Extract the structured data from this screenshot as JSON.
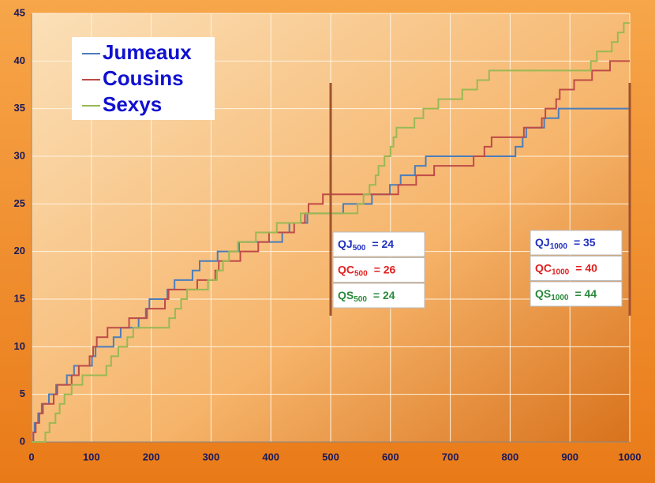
{
  "chart_data": {
    "type": "step-line",
    "xlim": [
      0,
      1000
    ],
    "xticks": [
      0,
      100,
      200,
      300,
      400,
      500,
      600,
      700,
      800,
      900,
      1000
    ],
    "ylim": [
      0,
      45
    ],
    "yticks": [
      0,
      5,
      10,
      15,
      20,
      25,
      30,
      35,
      40,
      45
    ],
    "grid": true,
    "legend": "top-left",
    "series": [
      {
        "name": "Jumeaux",
        "color": "#4a7ebb",
        "x": [
          0,
          3,
          5,
          11,
          17,
          29,
          41,
          59,
          71,
          101,
          107,
          137,
          149,
          179,
          191,
          197,
          227,
          239,
          269,
          281,
          311,
          347,
          419,
          431,
          461,
          521,
          569,
          599,
          617,
          641,
          659,
          809,
          821,
          827,
          857,
          881,
          1000
        ],
        "values": [
          0,
          1,
          2,
          3,
          4,
          5,
          6,
          7,
          8,
          9,
          10,
          11,
          12,
          13,
          14,
          15,
          16,
          17,
          18,
          19,
          20,
          21,
          22,
          23,
          24,
          25,
          26,
          27,
          28,
          29,
          30,
          31,
          32,
          33,
          34,
          35,
          35
        ]
      },
      {
        "name": "Cousins",
        "color": "#be4b48",
        "x": [
          0,
          3,
          7,
          13,
          19,
          37,
          43,
          67,
          79,
          97,
          103,
          109,
          127,
          163,
          193,
          223,
          229,
          277,
          307,
          313,
          349,
          379,
          397,
          439,
          457,
          463,
          487,
          613,
          643,
          673,
          739,
          757,
          769,
          823,
          853,
          859,
          877,
          883,
          907,
          937,
          967,
          1000
        ],
        "values": [
          0,
          1,
          2,
          3,
          4,
          5,
          6,
          7,
          8,
          9,
          10,
          11,
          12,
          13,
          14,
          15,
          16,
          17,
          18,
          19,
          20,
          21,
          22,
          23,
          24,
          25,
          26,
          27,
          28,
          29,
          30,
          31,
          32,
          33,
          34,
          35,
          36,
          37,
          38,
          39,
          40,
          40
        ]
      },
      {
        "name": "Sexys",
        "color": "#98b954",
        "x": [
          0,
          23,
          30,
          40,
          47,
          55,
          67,
          85,
          125,
          133,
          145,
          160,
          170,
          230,
          240,
          250,
          260,
          295,
          310,
          320,
          330,
          345,
          375,
          410,
          450,
          545,
          555,
          565,
          575,
          580,
          590,
          600,
          605,
          610,
          640,
          655,
          680,
          720,
          745,
          765,
          935,
          945,
          970,
          980,
          990,
          1000
        ],
        "values": [
          0,
          1,
          2,
          3,
          4,
          5,
          6,
          7,
          8,
          9,
          10,
          11,
          12,
          13,
          14,
          15,
          16,
          17,
          18,
          19,
          20,
          21,
          22,
          23,
          24,
          25,
          26,
          27,
          28,
          29,
          30,
          31,
          32,
          33,
          34,
          35,
          36,
          37,
          38,
          39,
          40,
          41,
          42,
          43,
          44,
          44
        ]
      }
    ],
    "markers": [
      {
        "x": 500,
        "color": "#a0522d",
        "boxes": [
          {
            "label": "QJ",
            "sub": "500",
            "text": "= 24",
            "color": "#1f2fbf"
          },
          {
            "label": "QC",
            "sub": "500",
            "text": "= 26",
            "color": "#e02020"
          },
          {
            "label": "QS",
            "sub": "500",
            "text": "= 24",
            "color": "#2a8a3a"
          }
        ]
      },
      {
        "x": 1000,
        "color": "#a0522d",
        "boxes": [
          {
            "label": "QJ",
            "sub": "1000",
            "text": "= 35",
            "color": "#1f2fbf"
          },
          {
            "label": "QC",
            "sub": "1000",
            "text": "= 40",
            "color": "#e02020"
          },
          {
            "label": "QS",
            "sub": "1000",
            "text": "= 44",
            "color": "#2a8a3a"
          }
        ]
      }
    ]
  }
}
